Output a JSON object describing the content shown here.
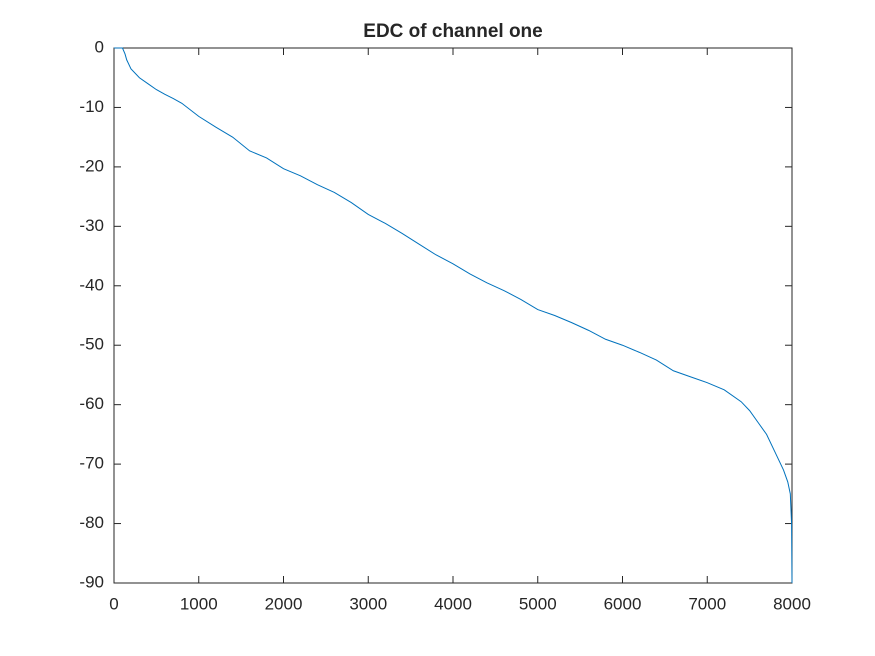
{
  "chart_data": {
    "type": "line",
    "title": "EDC of channel one",
    "x": [
      0,
      100,
      130,
      150,
      200,
      300,
      400,
      500,
      600,
      700,
      800,
      1000,
      1200,
      1400,
      1600,
      1800,
      2000,
      2200,
      2400,
      2600,
      2800,
      3000,
      3200,
      3400,
      3600,
      3800,
      4000,
      4200,
      4400,
      4600,
      4800,
      5000,
      5200,
      5400,
      5600,
      5800,
      6000,
      6200,
      6400,
      6600,
      6800,
      7000,
      7200,
      7400,
      7500,
      7600,
      7700,
      7800,
      7900,
      7950,
      7980,
      7995,
      8000
    ],
    "series": [
      {
        "name": "EDC",
        "color": "#0072bd",
        "values": [
          0,
          0,
          -1,
          -2,
          -3.5,
          -5,
          -6,
          -7,
          -7.8,
          -8.5,
          -9.3,
          -11.5,
          -13.3,
          -15,
          -17.3,
          -18.5,
          -20.3,
          -21.5,
          -23,
          -24.3,
          -26,
          -28,
          -29.5,
          -31.2,
          -33,
          -34.8,
          -36.3,
          -38,
          -39.5,
          -40.8,
          -42.3,
          -44,
          -45,
          -46.2,
          -47.5,
          -49,
          -50,
          -51.2,
          -52.5,
          -54.3,
          -55.3,
          -56.3,
          -57.5,
          -59.5,
          -61,
          -63,
          -65,
          -68,
          -71,
          -73,
          -75,
          -80,
          -90
        ]
      }
    ],
    "xlim": [
      0,
      8000
    ],
    "xticks": [
      0,
      1000,
      2000,
      3000,
      4000,
      5000,
      6000,
      7000,
      8000
    ],
    "ylim": [
      -90,
      0
    ],
    "yticks": [
      0,
      -10,
      -20,
      -30,
      -40,
      -50,
      -60,
      -70,
      -80,
      -90
    ],
    "grid": false
  }
}
